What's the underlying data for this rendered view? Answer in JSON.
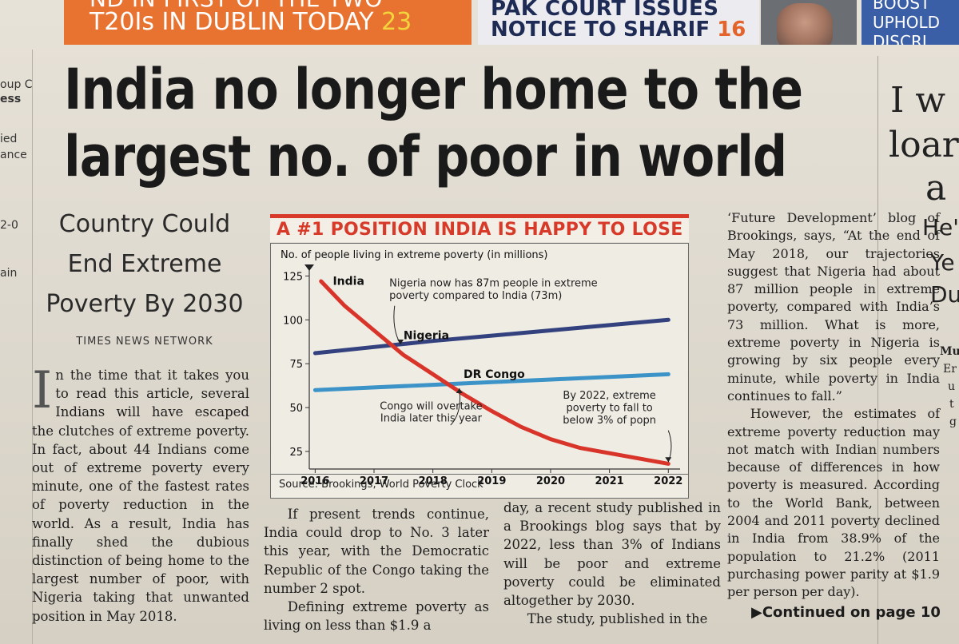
{
  "teasers": {
    "t1": {
      "line1": "ND IN FIRST OF THE TWO",
      "line2": "T20Is IN DUBLIN TODAY",
      "page": "23"
    },
    "t2": {
      "line1": "PAK COURT ISSUES",
      "line2": "NOTICE TO SHARIF",
      "page": "16"
    },
    "t4": {
      "line1": "BOOST",
      "line2": "UPHOLD",
      "line3": "DISCRI"
    }
  },
  "left_fragments": [
    "oup C",
    "ess",
    "ied",
    "ance",
    "2-0",
    "ain"
  ],
  "headline": {
    "line1": "India no longer home to the",
    "line2": "largest no. of poor in world"
  },
  "subhead": {
    "line1": "Country Could",
    "line2": "End Extreme",
    "line3": "Poverty By 2030"
  },
  "byline": "TIMES NEWS NETWORK",
  "article": {
    "dropcap": "I",
    "col1": "n the time that it takes you to read this article, several Indians will have escaped the clutches of extreme poverty. In fact, about 44 Indians come out of extreme poverty every minute, one of the fastest rates of poverty reduction in the world. As a result, India has finally shed the dubious distinction of being home to the largest number of poor, with Nigeria taking that unwanted position in May 2018.",
    "col2_p1": "If present trends continue, India could drop to No. 3 later this year, with the Democratic Republic of the Congo taking the number 2 spot.",
    "col2_p2": "Defining extreme poverty as living on less than $1.9 a",
    "col3_p1": "day, a recent study published in a Brookings blog says that by 2022, less than 3% of Indians will be poor and extreme poverty could be eliminated altogether by 2030.",
    "col3_p2": "The study, published in the",
    "col4_p1": "‘Future Development’ blog of Brookings, says, “At the end of May 2018, our trajectories suggest that Nigeria had about 87 million people in extreme poverty, compared with India’s 73 million. What is more, extreme poverty in Nigeria is growing by six people every minute, while poverty in India continues to fall.”",
    "col4_p2": "However, the estimates of extreme poverty reduction may not match with Indian numbers because of differences in how poverty is measured. According to the World Bank, between 2004 and 2011 poverty declined in India from 38.9% of the population to 21.2% (2011 purchasing power parity at $1.9 per person per day).",
    "continued": "▶Continued on page 10"
  },
  "right_fragments": [
    "I w",
    "loar",
    "a",
    "He'",
    "Ye",
    "Du",
    "Mu",
    "Er",
    "u",
    "t",
    "g"
  ],
  "chart_data": {
    "type": "line",
    "title": "A #1 POSITION INDIA IS HAPPY TO LOSE",
    "ylabel": "No. of people living in extreme poverty (in millions)",
    "xlabel": "",
    "x_ticks": [
      "2016",
      "2017",
      "2018",
      "2019",
      "2020",
      "2021",
      "2022"
    ],
    "y_ticks": [
      "125",
      "100",
      "75",
      "50",
      "25"
    ],
    "xlim": [
      2015.9,
      2022.2
    ],
    "ylim": [
      15,
      127
    ],
    "series": [
      {
        "name": "India",
        "color": "#d8342a",
        "points": [
          [
            2016.1,
            122
          ],
          [
            2016.5,
            108
          ],
          [
            2017,
            94
          ],
          [
            2017.5,
            80
          ],
          [
            2018,
            69
          ],
          [
            2018.5,
            58
          ],
          [
            2019,
            48
          ],
          [
            2019.5,
            39
          ],
          [
            2020,
            32
          ],
          [
            2020.5,
            27
          ],
          [
            2021,
            24
          ],
          [
            2021.5,
            21
          ],
          [
            2022,
            18
          ]
        ]
      },
      {
        "name": "Nigeria",
        "color": "#33417f",
        "points": [
          [
            2016,
            81
          ],
          [
            2017,
            84.5
          ],
          [
            2018,
            88
          ],
          [
            2019,
            91
          ],
          [
            2020,
            94
          ],
          [
            2021,
            97
          ],
          [
            2022,
            100
          ]
        ]
      },
      {
        "name": "DR Congo",
        "color": "#3b93c8",
        "points": [
          [
            2016,
            60
          ],
          [
            2017,
            61.5
          ],
          [
            2018,
            63
          ],
          [
            2019,
            64.5
          ],
          [
            2020,
            66
          ],
          [
            2021,
            67.5
          ],
          [
            2022,
            69
          ]
        ]
      }
    ],
    "annotations": [
      "Nigeria now has 87m people in extreme",
      "poverty compared to India (73m)",
      "Congo will overtake",
      "India later this year",
      "By 2022, extreme",
      "poverty to fall to",
      "below 3% of popn"
    ],
    "source": "Source: Brookings, World Poverty Clock"
  }
}
